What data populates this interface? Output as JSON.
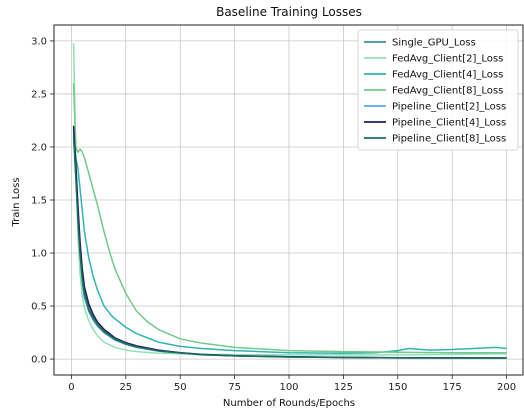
{
  "chart_data": {
    "type": "line",
    "title": "Baseline Training Losses",
    "xlabel": "Number of Rounds/Epochs",
    "ylabel": "Train Loss",
    "xlim": [
      -8,
      208
    ],
    "ylim": [
      -0.15,
      3.15
    ],
    "xticks": [
      0,
      25,
      50,
      75,
      100,
      125,
      150,
      175,
      200
    ],
    "yticks": [
      0.0,
      0.5,
      1.0,
      1.5,
      2.0,
      2.5,
      3.0
    ],
    "ytick_labels": [
      "0.0",
      "0.5",
      "1.0",
      "1.5",
      "2.0",
      "2.5",
      "3.0"
    ],
    "grid": true,
    "legend_position": "top-right",
    "series": [
      {
        "name": "Single_GPU_Loss",
        "color": "#3e8e9e",
        "x": [
          1,
          2,
          3,
          4,
          5,
          6,
          8,
          10,
          12,
          15,
          20,
          25,
          30,
          40,
          50,
          60,
          75,
          100,
          125,
          150,
          175,
          200
        ],
        "y": [
          2.15,
          1.75,
          1.3,
          0.95,
          0.72,
          0.58,
          0.45,
          0.37,
          0.31,
          0.25,
          0.18,
          0.14,
          0.11,
          0.075,
          0.055,
          0.04,
          0.03,
          0.02,
          0.015,
          0.012,
          0.01,
          0.01
        ]
      },
      {
        "name": "FedAvg_Client[2]_Loss",
        "color": "#8fe0b8",
        "x": [
          1,
          2,
          3,
          4,
          5,
          6,
          8,
          10,
          12,
          15,
          20,
          25,
          30,
          40,
          50,
          60,
          75,
          100,
          125,
          150,
          175,
          200
        ],
        "y": [
          2.98,
          1.95,
          1.15,
          0.8,
          0.6,
          0.48,
          0.36,
          0.28,
          0.22,
          0.16,
          0.11,
          0.085,
          0.07,
          0.055,
          0.05,
          0.045,
          0.042,
          0.04,
          0.04,
          0.04,
          0.045,
          0.05
        ]
      },
      {
        "name": "FedAvg_Client[4]_Loss",
        "color": "#2fb5b0",
        "x": [
          1,
          2,
          3,
          4,
          5,
          6,
          8,
          10,
          12,
          15,
          18,
          20,
          25,
          30,
          35,
          40,
          50,
          60,
          75,
          100,
          125,
          140,
          150,
          155,
          165,
          175,
          185,
          195,
          200
        ],
        "y": [
          2.05,
          1.9,
          1.8,
          1.6,
          1.4,
          1.2,
          0.95,
          0.78,
          0.65,
          0.5,
          0.42,
          0.38,
          0.3,
          0.24,
          0.2,
          0.16,
          0.12,
          0.1,
          0.08,
          0.06,
          0.055,
          0.06,
          0.08,
          0.1,
          0.085,
          0.09,
          0.1,
          0.11,
          0.1
        ]
      },
      {
        "name": "FedAvg_Client[8]_Loss",
        "color": "#72c98a",
        "x": [
          1,
          2,
          3,
          4,
          5,
          6,
          8,
          10,
          12,
          15,
          18,
          20,
          25,
          30,
          35,
          40,
          50,
          60,
          75,
          100,
          125,
          150,
          175,
          200
        ],
        "y": [
          2.6,
          2.0,
          1.95,
          1.98,
          1.95,
          1.9,
          1.75,
          1.6,
          1.45,
          1.2,
          0.98,
          0.85,
          0.62,
          0.45,
          0.35,
          0.28,
          0.19,
          0.15,
          0.11,
          0.08,
          0.07,
          0.065,
          0.06,
          0.06
        ]
      },
      {
        "name": "Pipeline_Client[2]_Loss",
        "color": "#5aa9e6",
        "x": [
          1,
          2,
          3,
          4,
          5,
          6,
          8,
          10,
          12,
          15,
          20,
          25,
          30,
          40,
          50,
          60,
          75,
          100,
          125,
          150,
          175,
          200
        ],
        "y": [
          2.18,
          1.78,
          1.35,
          1.0,
          0.78,
          0.63,
          0.48,
          0.4,
          0.34,
          0.27,
          0.2,
          0.15,
          0.12,
          0.08,
          0.06,
          0.045,
          0.032,
          0.022,
          0.016,
          0.013,
          0.011,
          0.01
        ]
      },
      {
        "name": "Pipeline_Client[4]_Loss",
        "color": "#1b1f66",
        "x": [
          1,
          2,
          3,
          4,
          5,
          6,
          8,
          10,
          12,
          15,
          20,
          25,
          30,
          40,
          50,
          60,
          75,
          100,
          125,
          150,
          175,
          200
        ],
        "y": [
          2.2,
          1.85,
          1.45,
          1.1,
          0.85,
          0.68,
          0.52,
          0.42,
          0.35,
          0.28,
          0.2,
          0.155,
          0.125,
          0.085,
          0.06,
          0.045,
          0.032,
          0.022,
          0.016,
          0.013,
          0.011,
          0.01
        ]
      },
      {
        "name": "Pipeline_Client[8]_Loss",
        "color": "#1e6e5c",
        "x": [
          1,
          2,
          3,
          4,
          5,
          6,
          8,
          10,
          12,
          15,
          20,
          25,
          30,
          40,
          50,
          60,
          75,
          100,
          125,
          150,
          175,
          200
        ],
        "y": [
          2.1,
          1.72,
          1.3,
          0.98,
          0.76,
          0.62,
          0.47,
          0.39,
          0.33,
          0.26,
          0.19,
          0.145,
          0.115,
          0.078,
          0.057,
          0.042,
          0.03,
          0.02,
          0.015,
          0.012,
          0.01,
          0.01
        ]
      }
    ]
  }
}
